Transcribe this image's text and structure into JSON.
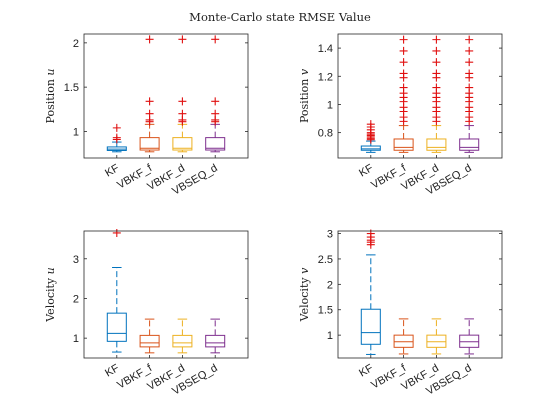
{
  "figure": {
    "title": "Monte-Carlo state RMSE Value"
  },
  "chart_data": [
    {
      "type": "box",
      "ylabel": "Position u",
      "ylim": [
        0.7,
        2.1
      ],
      "yticks": [
        1,
        1.5,
        2
      ],
      "categories": [
        "KF",
        "VBKF_f",
        "VBKF_d",
        "VBSEQ_d"
      ],
      "colors": [
        "#0072BD",
        "#D95319",
        "#EDB120",
        "#7E2F8E"
      ],
      "boxes": [
        {
          "whisker_low": 0.77,
          "q1": 0.785,
          "median": 0.8,
          "q3": 0.825,
          "whisker_high": 0.88,
          "outliers": [
            0.91,
            0.93,
            1.04
          ]
        },
        {
          "whisker_low": 0.77,
          "q1": 0.79,
          "median": 0.81,
          "q3": 0.93,
          "whisker_high": 1.08,
          "outliers": [
            1.11,
            1.13,
            1.2,
            1.34,
            2.04
          ]
        },
        {
          "whisker_low": 0.77,
          "q1": 0.79,
          "median": 0.81,
          "q3": 0.93,
          "whisker_high": 1.08,
          "outliers": [
            1.11,
            1.13,
            1.2,
            1.34,
            2.04
          ]
        },
        {
          "whisker_low": 0.77,
          "q1": 0.79,
          "median": 0.81,
          "q3": 0.93,
          "whisker_high": 1.08,
          "outliers": [
            1.11,
            1.13,
            1.2,
            1.34,
            2.04
          ]
        }
      ]
    },
    {
      "type": "box",
      "ylabel": "Position v",
      "ylim": [
        0.62,
        1.5
      ],
      "yticks": [
        0.8,
        1,
        1.2,
        1.4
      ],
      "categories": [
        "KF",
        "VBKF_f",
        "VBKF_d",
        "VBSEQ_d"
      ],
      "colors": [
        "#0072BD",
        "#D95319",
        "#EDB120",
        "#7E2F8E"
      ],
      "boxes": [
        {
          "whisker_low": 0.66,
          "q1": 0.675,
          "median": 0.685,
          "q3": 0.705,
          "whisker_high": 0.74,
          "outliers": [
            0.75,
            0.76,
            0.77,
            0.78,
            0.79,
            0.8,
            0.82,
            0.84,
            0.86
          ]
        },
        {
          "whisker_low": 0.66,
          "q1": 0.675,
          "median": 0.695,
          "q3": 0.755,
          "whisker_high": 0.85,
          "outliers": [
            0.88,
            0.91,
            0.95,
            0.98,
            1.02,
            1.05,
            1.08,
            1.12,
            1.19,
            1.22,
            1.3,
            1.38,
            1.46
          ]
        },
        {
          "whisker_low": 0.66,
          "q1": 0.675,
          "median": 0.695,
          "q3": 0.755,
          "whisker_high": 0.85,
          "outliers": [
            0.88,
            0.91,
            0.95,
            0.98,
            1.02,
            1.05,
            1.08,
            1.12,
            1.19,
            1.22,
            1.3,
            1.38,
            1.46
          ]
        },
        {
          "whisker_low": 0.66,
          "q1": 0.675,
          "median": 0.695,
          "q3": 0.755,
          "whisker_high": 0.85,
          "outliers": [
            0.88,
            0.91,
            0.95,
            0.98,
            1.02,
            1.05,
            1.08,
            1.12,
            1.19,
            1.22,
            1.3,
            1.38,
            1.46
          ]
        }
      ]
    },
    {
      "type": "box",
      "ylabel": "Velocity u",
      "ylim": [
        0.5,
        3.7
      ],
      "yticks": [
        1,
        2,
        3
      ],
      "categories": [
        "KF",
        "VBKF_f",
        "VBKF_d",
        "VBSEQ_d"
      ],
      "colors": [
        "#0072BD",
        "#D95319",
        "#EDB120",
        "#7E2F8E"
      ],
      "boxes": [
        {
          "whisker_low": 0.65,
          "q1": 0.92,
          "median": 1.12,
          "q3": 1.63,
          "whisker_high": 2.78,
          "outliers": [
            3.65
          ]
        },
        {
          "whisker_low": 0.63,
          "q1": 0.78,
          "median": 0.88,
          "q3": 1.07,
          "whisker_high": 1.48,
          "outliers": []
        },
        {
          "whisker_low": 0.63,
          "q1": 0.78,
          "median": 0.88,
          "q3": 1.07,
          "whisker_high": 1.48,
          "outliers": []
        },
        {
          "whisker_low": 0.63,
          "q1": 0.78,
          "median": 0.88,
          "q3": 1.07,
          "whisker_high": 1.48,
          "outliers": []
        }
      ]
    },
    {
      "type": "box",
      "ylabel": "Velocity v",
      "ylim": [
        0.55,
        3.05
      ],
      "yticks": [
        1,
        1.5,
        2,
        2.5,
        3
      ],
      "categories": [
        "KF",
        "VBKF_f",
        "VBKF_d",
        "VBSEQ_d"
      ],
      "colors": [
        "#0072BD",
        "#D95319",
        "#EDB120",
        "#7E2F8E"
      ],
      "boxes": [
        {
          "whisker_low": 0.62,
          "q1": 0.82,
          "median": 1.05,
          "q3": 1.51,
          "whisker_high": 2.58,
          "outliers": [
            2.78,
            2.83,
            2.87,
            2.93,
            3.0
          ]
        },
        {
          "whisker_low": 0.63,
          "q1": 0.76,
          "median": 0.87,
          "q3": 1.0,
          "whisker_high": 1.32,
          "outliers": []
        },
        {
          "whisker_low": 0.63,
          "q1": 0.76,
          "median": 0.87,
          "q3": 1.0,
          "whisker_high": 1.32,
          "outliers": []
        },
        {
          "whisker_low": 0.63,
          "q1": 0.76,
          "median": 0.87,
          "q3": 1.0,
          "whisker_high": 1.32,
          "outliers": []
        }
      ]
    }
  ]
}
